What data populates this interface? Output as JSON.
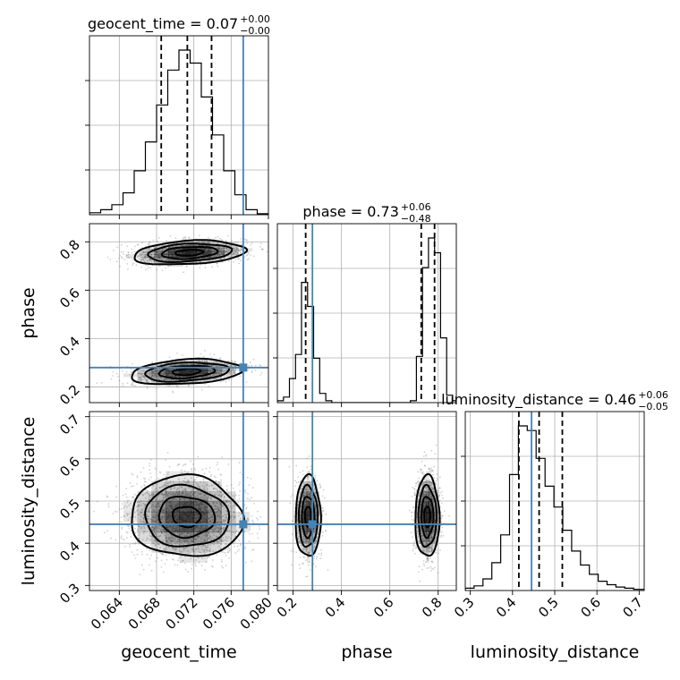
{
  "figure": {
    "colors": {
      "truth": "#4682b4",
      "hist": "#000000",
      "grid": "#b0b0b0",
      "scatter": "#7a7a7a"
    }
  },
  "chart_data": {
    "type": "corner",
    "parameters": [
      "geocent_time",
      "phase",
      "luminosity_distance"
    ],
    "truths": {
      "geocent_time": 0.0773,
      "phase": 0.28,
      "luminosity_distance": 0.445
    },
    "ranges": {
      "geocent_time": [
        0.0608,
        0.08
      ],
      "phase": [
        0.135,
        0.875
      ],
      "luminosity_distance": [
        0.288,
        0.712
      ]
    },
    "ticks": {
      "geocent_time": [
        "0.064",
        "0.068",
        "0.072",
        "0.076",
        "0.080"
      ],
      "phase": [
        "0.2",
        "0.4",
        "0.6",
        "0.8"
      ],
      "luminosity_distance": [
        "0.3",
        "0.4",
        "0.5",
        "0.6",
        "0.7"
      ]
    },
    "titles": {
      "geocent_time": {
        "text": "geocent_time = 0.07",
        "plus": "+0.00",
        "minus": "−0.00"
      },
      "phase": {
        "text": "phase = 0.73",
        "plus": "+0.06",
        "minus": "−0.48"
      },
      "luminosity_distance": {
        "text": "luminosity_distance = 0.46",
        "plus": "+0.06",
        "minus": "−0.05"
      }
    },
    "quantiles": {
      "geocent_time": [
        0.0685,
        0.0713,
        0.0739
      ],
      "phase": [
        0.252,
        0.73,
        0.785
      ],
      "luminosity_distance": [
        0.415,
        0.463,
        0.518
      ]
    },
    "histograms": {
      "geocent_time": {
        "edges": [
          0.0608,
          0.062,
          0.0632,
          0.0644,
          0.0656,
          0.0668,
          0.068,
          0.0692,
          0.0704,
          0.0716,
          0.0728,
          0.074,
          0.0752,
          0.0764,
          0.0776,
          0.0788,
          0.08
        ],
        "counts": [
          2,
          5,
          10,
          22,
          44,
          73,
          110,
          145,
          165,
          152,
          118,
          80,
          44,
          20,
          5,
          1
        ]
      },
      "phase": {
        "edges": [
          0.135,
          0.16,
          0.185,
          0.21,
          0.235,
          0.26,
          0.285,
          0.31,
          0.335,
          0.36,
          0.385,
          0.41,
          0.435,
          0.46,
          0.485,
          0.51,
          0.535,
          0.56,
          0.585,
          0.61,
          0.635,
          0.66,
          0.685,
          0.71,
          0.735,
          0.76,
          0.785,
          0.81,
          0.835,
          0.86,
          0.875
        ],
        "counts": [
          2,
          6,
          26,
          52,
          130,
          104,
          48,
          10,
          2,
          0,
          0,
          0,
          0,
          0,
          0,
          0,
          0,
          0,
          0,
          0,
          0,
          0,
          2,
          50,
          146,
          178,
          162,
          70,
          8,
          2
        ]
      },
      "luminosity_distance": {
        "edges": [
          0.288,
          0.309,
          0.33,
          0.351,
          0.372,
          0.393,
          0.414,
          0.435,
          0.456,
          0.477,
          0.498,
          0.519,
          0.54,
          0.561,
          0.582,
          0.603,
          0.624,
          0.645,
          0.666,
          0.687,
          0.712
        ],
        "counts": [
          2,
          4,
          10,
          24,
          48,
          100,
          142,
          138,
          114,
          90,
          72,
          52,
          34,
          22,
          14,
          8,
          5,
          3,
          2,
          1
        ]
      }
    }
  }
}
